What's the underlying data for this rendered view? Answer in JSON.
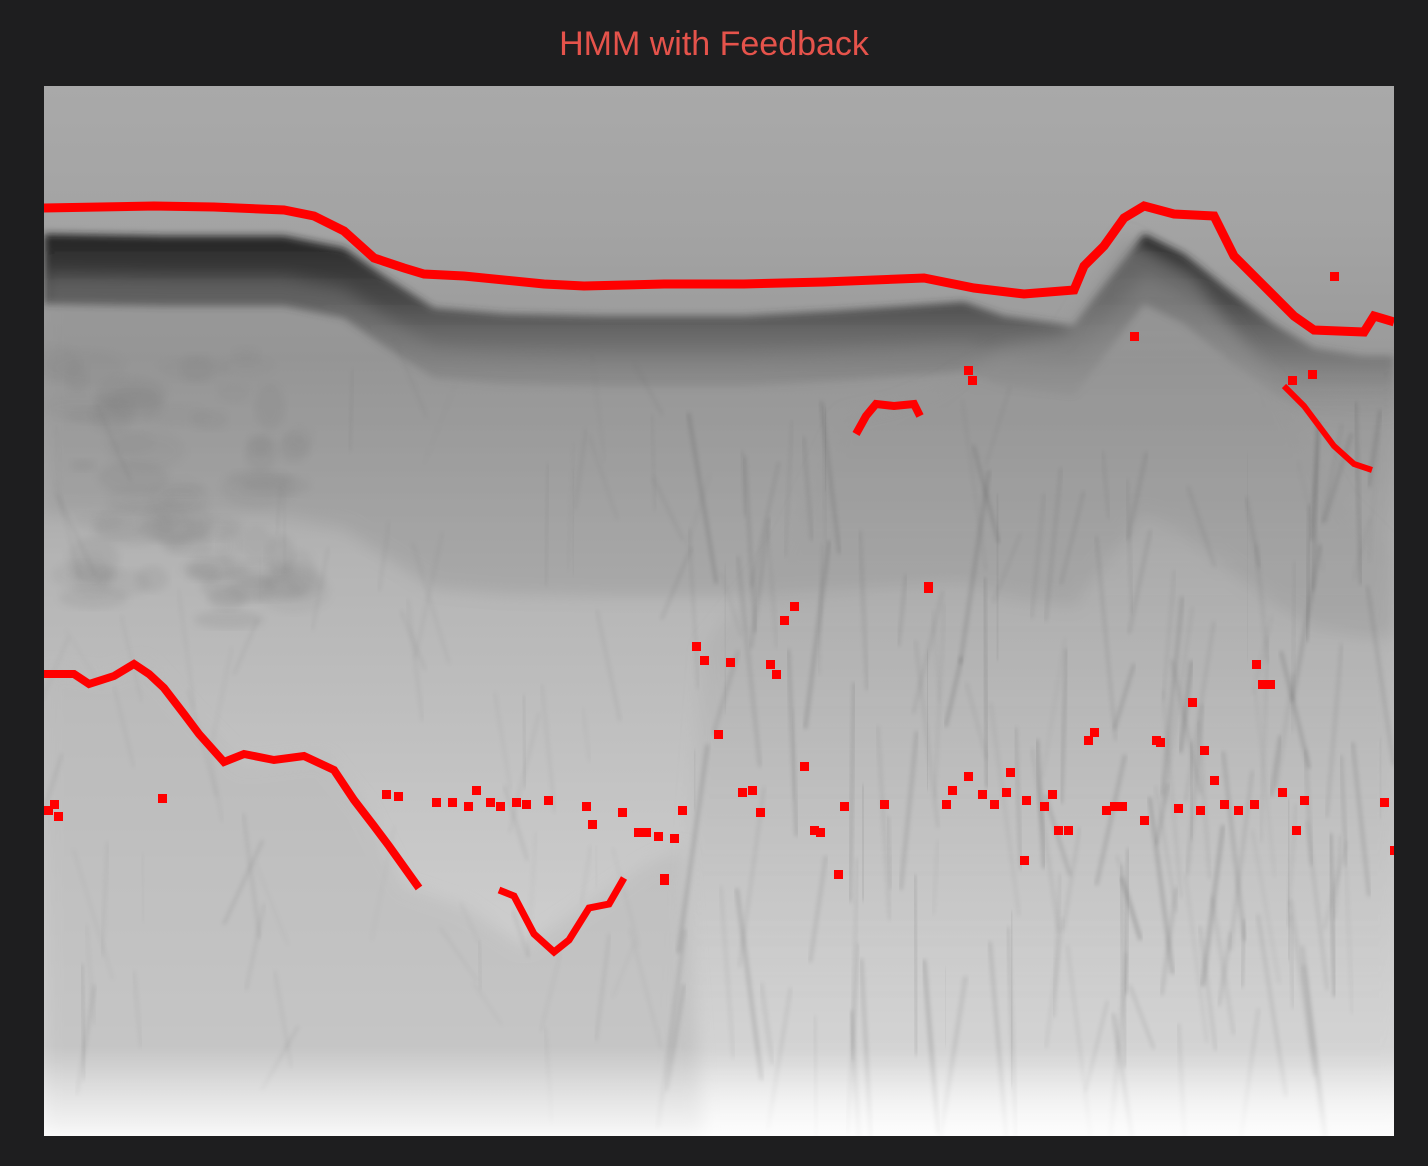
{
  "title": "HMM with Feedback",
  "colors": {
    "background": "#1e1e1f",
    "title": "#e5534b",
    "trace": "#ff0000"
  },
  "image": {
    "kind": "grayscale radargram with red detected layer traces",
    "colormap": "grayscale"
  }
}
